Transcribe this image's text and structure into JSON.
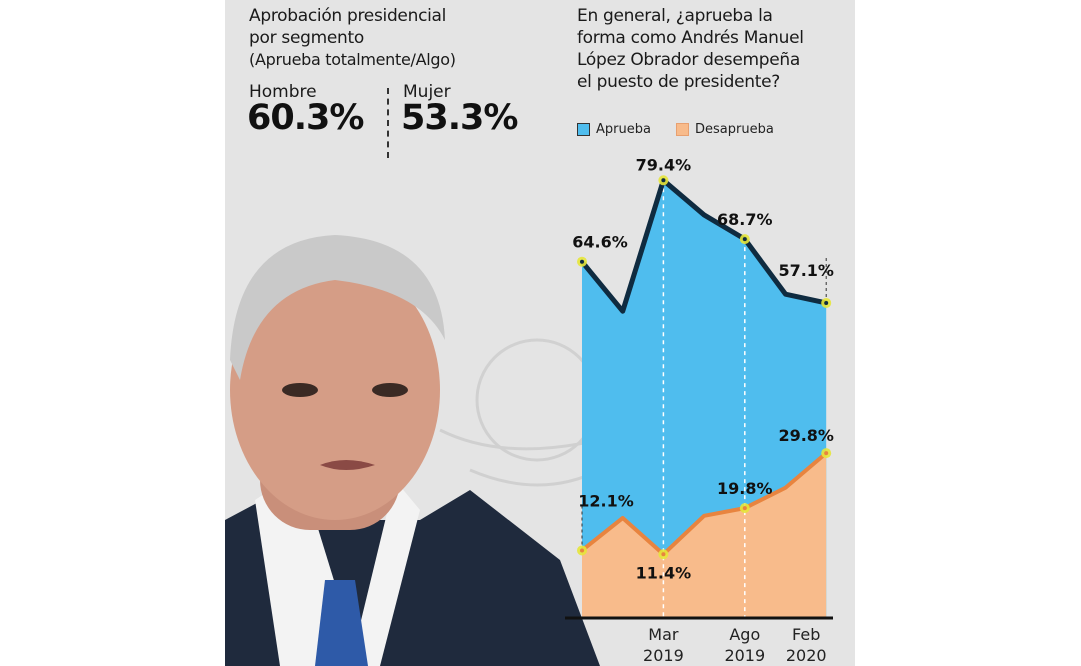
{
  "left": {
    "title_line1": "Aprobación presidencial",
    "title_line2": "por segmento",
    "subtitle": "(Aprueba totalmente/Algo)",
    "segments": [
      {
        "label": "Hombre",
        "value": "60.3%"
      },
      {
        "label": "Mujer",
        "value": "53.3%"
      }
    ]
  },
  "chart_data": {
    "type": "area",
    "title": "En general, ¿aprueba la forma como Andrés Manuel López Obrador desempeña el puesto de presidente?",
    "title_lines": [
      "En general, ¿aprueba la",
      "forma como Andrés Manuel",
      "López Obrador desempeña",
      "el puesto de presidente?"
    ],
    "xlabel": "",
    "ylabel": "",
    "ylim": [
      0,
      100
    ],
    "grid": false,
    "legend_placement": "top-left",
    "x_ticks": [
      {
        "index": 2,
        "line1": "Mar",
        "line2": "2019"
      },
      {
        "index": 4,
        "line1": "Ago",
        "line2": "2019"
      },
      {
        "index": 6,
        "line1": "Feb",
        "line2": "2020"
      }
    ],
    "series": [
      {
        "name": "Aprueba",
        "color": "#4fbdee",
        "line_color": "#0f2b40",
        "values": [
          64.6,
          55.6,
          79.4,
          73.1,
          68.7,
          58.7,
          57.1
        ],
        "labels": [
          "64.6%",
          null,
          "79.4%",
          null,
          "68.7%",
          null,
          "57.1%"
        ]
      },
      {
        "name": "Desaprueba",
        "color": "#f8bb8b",
        "line_color": "#e8843f",
        "values": [
          12.1,
          18.0,
          11.4,
          18.4,
          19.8,
          23.5,
          29.8
        ],
        "labels": [
          "12.1%",
          null,
          "11.4%",
          null,
          "19.8%",
          null,
          "29.8%"
        ]
      }
    ],
    "highlight_color": "#e6e63a"
  }
}
